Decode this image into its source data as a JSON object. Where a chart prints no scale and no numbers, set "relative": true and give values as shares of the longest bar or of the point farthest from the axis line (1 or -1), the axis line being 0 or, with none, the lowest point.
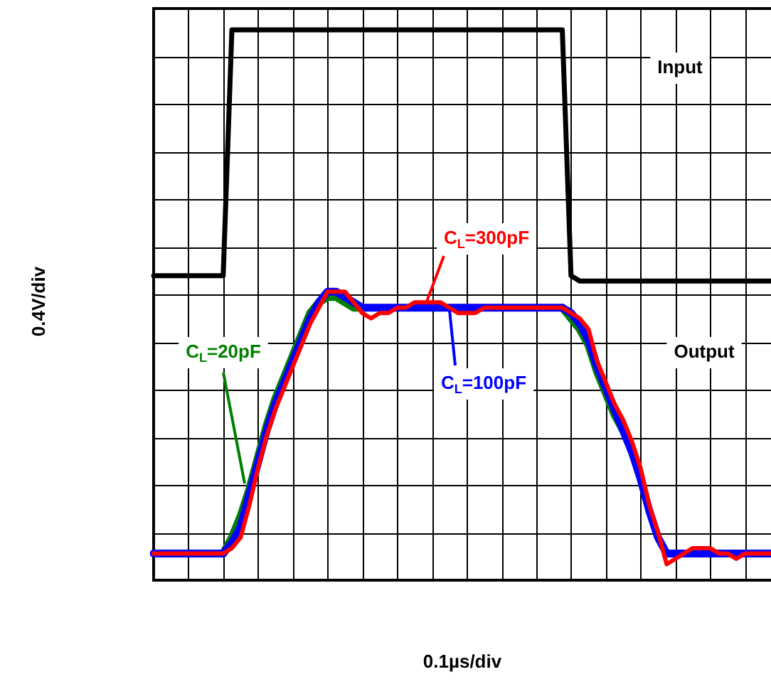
{
  "chart_data": {
    "type": "line",
    "relative": true,
    "xlabel": "0.1µs/div",
    "grid": true,
    "legend": false,
    "marker": "none",
    "line_style": "solid",
    "categories": [
      null,
      null,
      null,
      null,
      null,
      null,
      null,
      null,
      null,
      null,
      null,
      null,
      null,
      null,
      null,
      null,
      null,
      null,
      null,
      null,
      null,
      null,
      null,
      null,
      null,
      null,
      null,
      null,
      null,
      null,
      null,
      null,
      null,
      null,
      null,
      null,
      null,
      null,
      null,
      null,
      null,
      null,
      null,
      null,
      null,
      null,
      null,
      null,
      null,
      null,
      null,
      null,
      null,
      null,
      null,
      null,
      null,
      null,
      null,
      null,
      null,
      null,
      null,
      null,
      null,
      null,
      null,
      null,
      null,
      null,
      null,
      null
    ],
    "series": [
      {
        "name": "Input",
        "color": "#000000",
        "values": [
          0.54,
          0.54,
          0.54,
          0.54,
          0.54,
          0.54,
          0.54,
          0.54,
          0.54,
          1,
          1,
          1,
          1,
          1,
          1,
          1,
          1,
          1,
          1,
          1,
          1,
          1,
          1,
          1,
          1,
          1,
          1,
          1,
          1,
          1,
          1,
          1,
          1,
          1,
          1,
          1,
          1,
          1,
          1,
          1,
          1,
          1,
          1,
          1,
          1,
          1,
          1,
          1,
          0.54,
          0.53,
          0.53,
          0.53,
          0.53,
          0.53,
          0.53,
          0.53,
          0.53,
          0.53,
          0.53,
          0.53,
          0.53,
          0.53,
          0.53,
          0.53,
          0.53,
          0.53,
          0.53,
          0.53,
          0.53,
          0.53,
          0.53,
          0.53
        ]
      },
      {
        "name": "C$_{L}$=20pF",
        "color": "#008000",
        "values": [
          null,
          null,
          null,
          null,
          null,
          null,
          null,
          null,
          0.02,
          0.05,
          0.09,
          0.14,
          0.2,
          0.26,
          0.31,
          0.35,
          0.39,
          0.43,
          0.47,
          0.49,
          0.5,
          0.5,
          0.49,
          0.48,
          0.48,
          null,
          null,
          null,
          null,
          null,
          null,
          null,
          null,
          null,
          null,
          null,
          null,
          null,
          null,
          null,
          null,
          null,
          null,
          null,
          null,
          null,
          null,
          0.48,
          0.46,
          0.44,
          0.41,
          0.36,
          0.32,
          0.28,
          0.25,
          null,
          null,
          null,
          null,
          null,
          null,
          null,
          null,
          null,
          null,
          null,
          null,
          null,
          null,
          null,
          null,
          null
        ]
      },
      {
        "name": "C$_{L}$=100pF",
        "color": "#0000ff",
        "values": [
          0.02,
          0.02,
          0.02,
          0.02,
          0.02,
          0.02,
          0.02,
          0.02,
          0.02,
          0.04,
          0.07,
          0.13,
          0.19,
          0.25,
          0.3,
          0.34,
          0.38,
          0.42,
          0.46,
          0.49,
          0.51,
          0.51,
          0.5,
          0.49,
          0.48,
          0.48,
          0.48,
          0.48,
          0.48,
          0.48,
          0.48,
          0.48,
          0.48,
          0.48,
          0.48,
          0.48,
          0.48,
          0.48,
          0.48,
          0.48,
          0.48,
          0.48,
          0.48,
          0.48,
          0.48,
          0.48,
          0.48,
          0.48,
          0.47,
          0.45,
          0.42,
          0.37,
          0.33,
          0.29,
          0.25,
          0.21,
          0.16,
          0.1,
          0.05,
          0.02,
          0.02,
          0.02,
          0.02,
          0.02,
          0.02,
          0.02,
          0.02,
          0.02,
          0.02,
          0.02,
          0.02,
          0.02
        ]
      },
      {
        "name": "C$_{L}$=300pF",
        "color": "#ff0000",
        "values": [
          0.02,
          0.02,
          0.02,
          0.02,
          0.02,
          0.02,
          0.02,
          0.02,
          0.02,
          0.03,
          0.05,
          0.11,
          0.18,
          0.24,
          0.29,
          0.33,
          0.37,
          0.41,
          0.45,
          0.48,
          0.51,
          0.51,
          0.51,
          0.49,
          0.47,
          0.46,
          0.47,
          0.47,
          0.48,
          0.48,
          0.49,
          0.49,
          0.49,
          0.49,
          0.48,
          0.47,
          0.47,
          0.47,
          0.48,
          0.48,
          0.48,
          0.48,
          0.48,
          0.48,
          0.48,
          0.48,
          0.48,
          0.48,
          0.47,
          0.46,
          0.44,
          0.38,
          0.34,
          0.3,
          0.27,
          0.23,
          0.18,
          0.11,
          0.06,
          0,
          0.01,
          0.02,
          0.03,
          0.03,
          0.03,
          0.02,
          0.02,
          0.01,
          0.02,
          0.02,
          0.02,
          0.02
        ]
      }
    ],
    "annotations": [
      "Output",
      "0.4V/div"
    ]
  }
}
